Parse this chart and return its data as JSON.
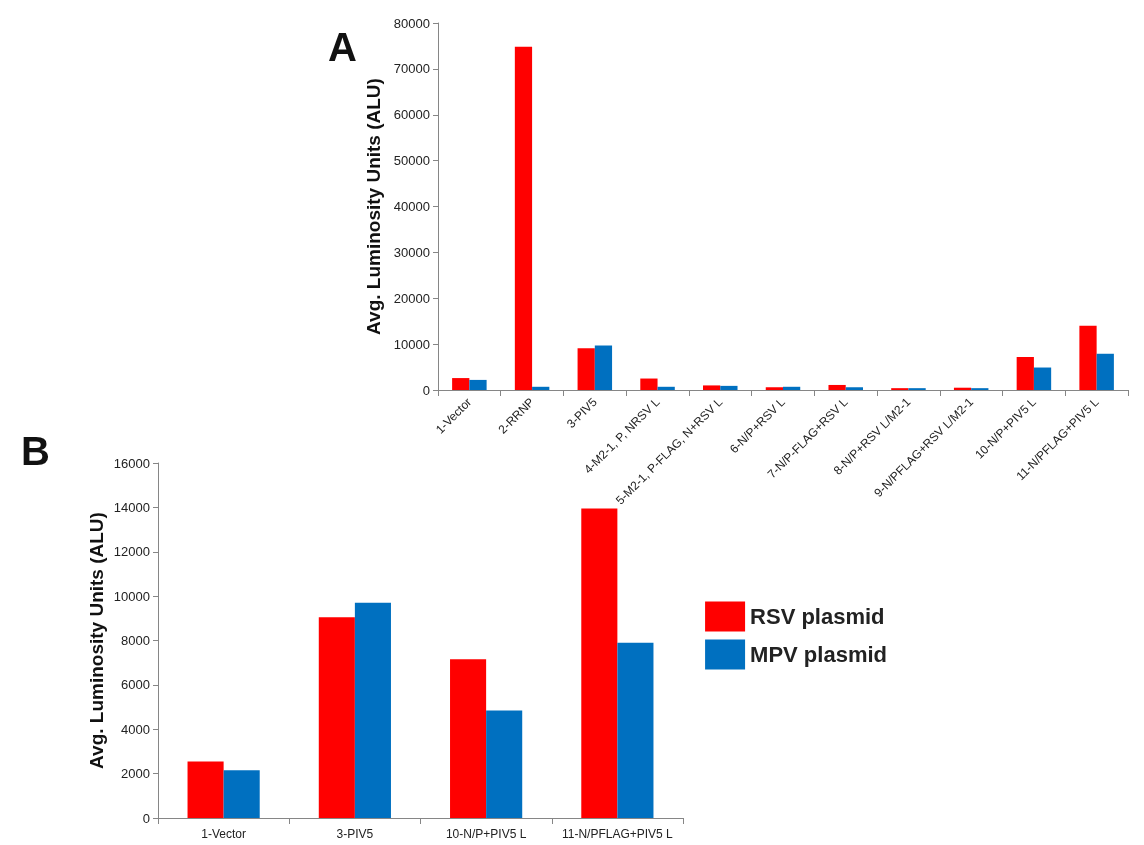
{
  "chart_data": [
    {
      "type": "bar",
      "title": "A",
      "ylabel": "Avg. Luminosity Units (ALU)",
      "categories": [
        "1-Vector",
        "2-RRNP",
        "3-PIV5",
        "4-M2-1, P, NRSV L",
        "5-M2-1, P-FLAG, N+RSV L",
        "6-N/P+RSV L",
        "7-N/P-FLAG+RSV L",
        "8-N/P+RSV L/M2-1",
        "9-N/PFLAG+RSV L/M2-1",
        "10-N/P+PIV5 L",
        "11-N/PFLAG+PIV5 L"
      ],
      "series": [
        {
          "color": "#ff0000",
          "values": [
            2600,
            74800,
            9100,
            2500,
            1000,
            600,
            1100,
            400,
            500,
            7200,
            14000
          ]
        },
        {
          "color": "#0070c0",
          "values": [
            2200,
            700,
            9700,
            700,
            900,
            700,
            600,
            400,
            400,
            4900,
            7900
          ]
        }
      ],
      "ylim": [
        0,
        80000
      ],
      "yticks": [
        0,
        10000,
        20000,
        30000,
        40000,
        50000,
        60000,
        70000,
        80000
      ],
      "grid": false,
      "legend": false
    },
    {
      "type": "bar",
      "title": "B",
      "ylabel": "Avg. Luminosity Units (ALU)",
      "categories": [
        "1-Vector",
        "3-PIV5",
        "10-N/P+PIV5 L",
        "11-N/PFLAG+PIV5 L"
      ],
      "series": [
        {
          "name": "RSV plasmid",
          "color": "#ff0000",
          "values": [
            2550,
            9050,
            7150,
            13950
          ]
        },
        {
          "name": "MPV plasmid",
          "color": "#0070c0",
          "values": [
            2150,
            9700,
            4850,
            7900
          ]
        }
      ],
      "ylim": [
        0,
        16000
      ],
      "yticks": [
        0,
        2000,
        4000,
        6000,
        8000,
        10000,
        12000,
        14000,
        16000
      ],
      "grid": false,
      "legend": "right"
    }
  ]
}
